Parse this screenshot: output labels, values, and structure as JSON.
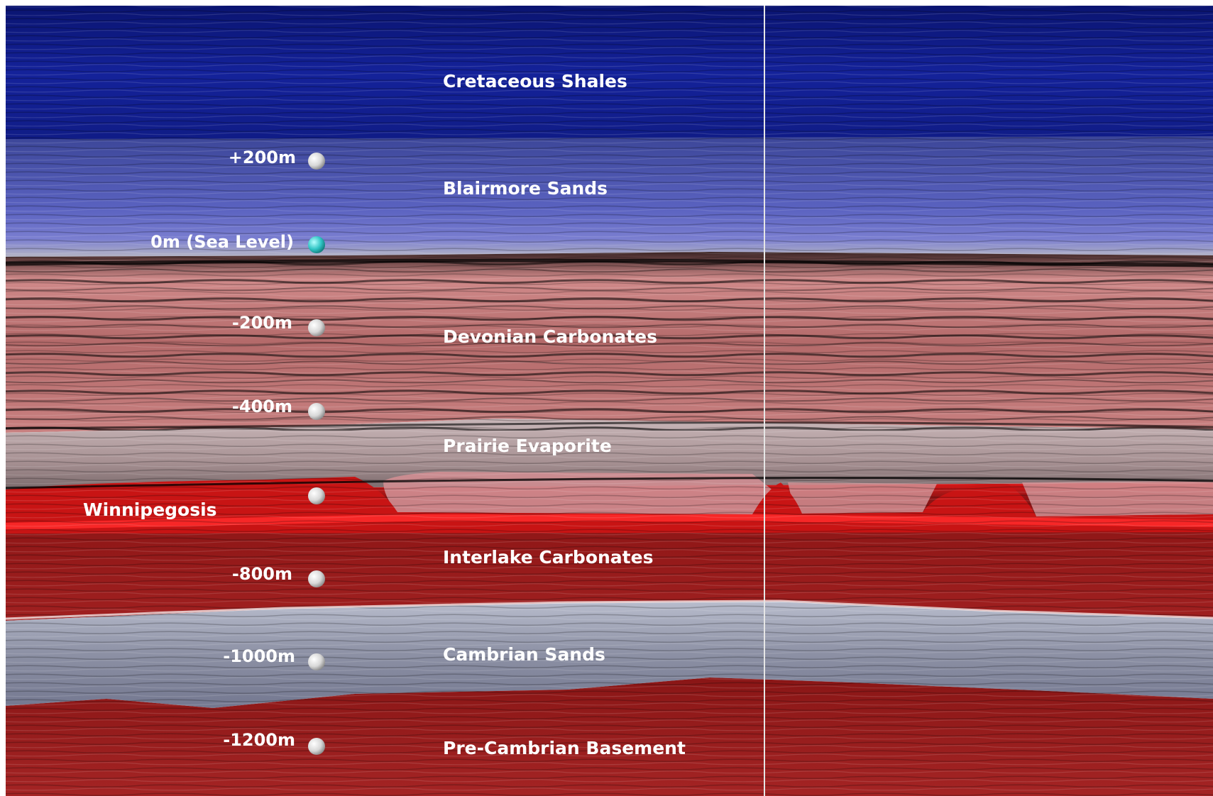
{
  "formations": [
    {
      "name": "Cretaceous Shales",
      "color": "#0b1a8c"
    },
    {
      "name": "Blairmore Sands",
      "color": "#4a55b8"
    },
    {
      "name": "Devonian Carbonates",
      "color": "#c27878"
    },
    {
      "name": "Prairie Evaporite",
      "color": "#b9a3a5"
    },
    {
      "name": "Winnipegosis",
      "color": "#c01414"
    },
    {
      "name": "Interlake Carbonates",
      "color": "#941c1c"
    },
    {
      "name": "Cambrian Sands",
      "color": "#8f93a6"
    },
    {
      "name": "Pre-Cambrian Basement",
      "color": "#961e1e"
    }
  ],
  "depth_markers": [
    {
      "label": "+200m",
      "color": "#e6e6e6"
    },
    {
      "label": "0m (Sea Level)",
      "color": "#2fc4c4"
    },
    {
      "label": "-200m",
      "color": "#e6e6e6"
    },
    {
      "label": "-400m",
      "color": "#e6e6e6"
    },
    {
      "label": "",
      "color": "#e6e6e6"
    },
    {
      "label": "-800m",
      "color": "#e6e6e6"
    },
    {
      "label": "-1000m",
      "color": "#e6e6e6"
    },
    {
      "label": "-1200m",
      "color": "#e6e6e6"
    }
  ]
}
